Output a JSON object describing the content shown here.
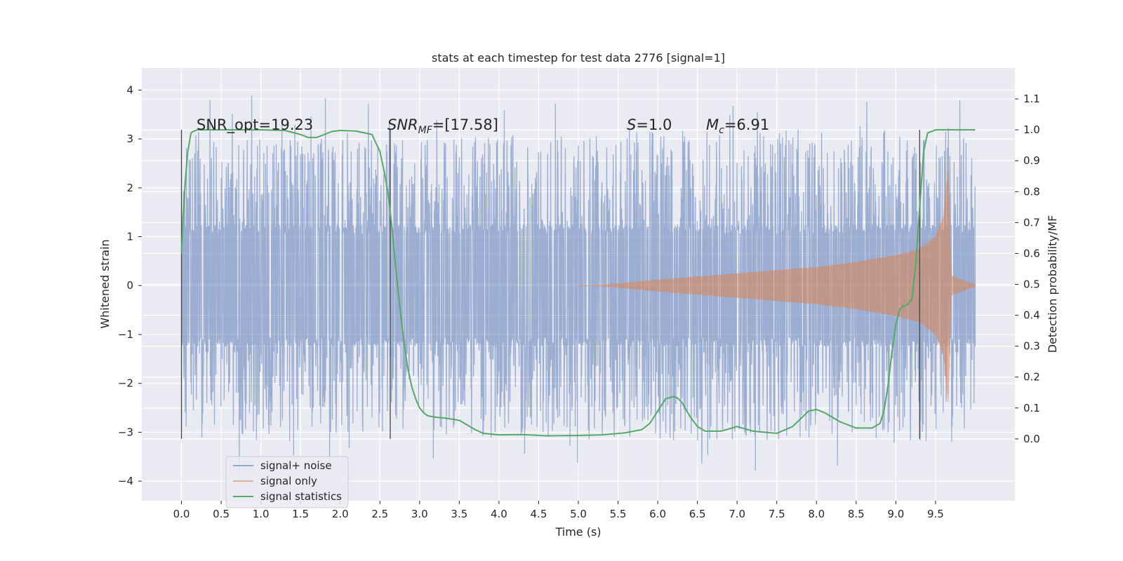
{
  "chart_data": {
    "type": "line",
    "title": "stats at each timestep for test data 2776 [signal=1]",
    "xlabel": "Time (s)",
    "ylabel_left": "Whitened strain",
    "ylabel_right": "Detection probability/MF",
    "xlim": [
      -0.5,
      10.5
    ],
    "ylim_left": [
      -4.4,
      4.45
    ],
    "ylim_right": [
      -0.2,
      1.2
    ],
    "x_ticks": [
      0.0,
      0.5,
      1.0,
      1.5,
      2.0,
      2.5,
      3.0,
      3.5,
      4.0,
      4.5,
      5.0,
      5.5,
      6.0,
      6.5,
      7.0,
      7.5,
      8.0,
      8.5,
      9.0,
      9.5
    ],
    "x_tick_labels": [
      "0.0",
      "0.5",
      "1.0",
      "1.5",
      "2.0",
      "2.5",
      "3.0",
      "3.5",
      "4.0",
      "4.5",
      "5.0",
      "5.5",
      "6.0",
      "6.5",
      "7.0",
      "7.5",
      "8.0",
      "8.5",
      "9.0",
      "9.5"
    ],
    "y_left_ticks": [
      -4,
      -3,
      -2,
      -1,
      0,
      1,
      2,
      3,
      4
    ],
    "y_left_tick_labels": [
      "−4",
      "−3",
      "−2",
      "−1",
      "0",
      "1",
      "2",
      "3",
      "4"
    ],
    "y_right_ticks": [
      0.0,
      0.1,
      0.2,
      0.3,
      0.4,
      0.5,
      0.6,
      0.7,
      0.8,
      0.9,
      1.0,
      1.1
    ],
    "y_right_tick_labels": [
      "0.0",
      "0.1",
      "0.2",
      "0.3",
      "0.4",
      "0.5",
      "0.6",
      "0.7",
      "0.8",
      "0.9",
      "1.0",
      "1.1"
    ],
    "grid": true,
    "legend_position": "bottom-left",
    "annotations": {
      "snr_opt": "SNR_opt=19.23",
      "snr_mf_main": "SNR",
      "snr_mf_sub": "MF",
      "snr_mf_value": "=[17.58]",
      "s_main": "S",
      "s_value": "=1.0",
      "mc_main": "M",
      "mc_sub": "c",
      "mc_value": "=6.91"
    },
    "vertical_markers_x": [
      0.0,
      2.63,
      9.3
    ],
    "series": [
      {
        "name": "signal+ noise",
        "color": "#4c72b0",
        "axis": "left",
        "x_range": [
          0.0,
          10.0
        ],
        "core_amplitude": 1.25,
        "spike_envelope": [
          [
            0.0,
            3.2
          ],
          [
            1.0,
            3.0
          ],
          [
            5.0,
            3.1
          ],
          [
            9.0,
            3.3
          ],
          [
            10.0,
            3.2
          ]
        ]
      },
      {
        "name": "signal only",
        "color": "#dd8452",
        "axis": "left",
        "envelope": [
          [
            5.2,
            0.0
          ],
          [
            6.0,
            0.12
          ],
          [
            7.0,
            0.25
          ],
          [
            8.0,
            0.38
          ],
          [
            8.5,
            0.48
          ],
          [
            9.0,
            0.62
          ],
          [
            9.3,
            0.75
          ],
          [
            9.5,
            1.0
          ],
          [
            9.6,
            1.4
          ],
          [
            9.66,
            2.4
          ],
          [
            9.7,
            0.2
          ],
          [
            10.0,
            0.02
          ]
        ]
      },
      {
        "name": "signal statistics",
        "color": "#55a868",
        "axis": "right",
        "x": [
          0.0,
          0.02,
          0.05,
          0.08,
          0.12,
          0.15,
          0.2,
          0.3,
          0.5,
          0.8,
          1.0,
          1.3,
          1.5,
          1.6,
          1.7,
          1.8,
          1.9,
          2.0,
          2.2,
          2.4,
          2.5,
          2.55,
          2.6,
          2.65,
          2.7,
          2.75,
          2.8,
          2.85,
          2.9,
          2.95,
          3.0,
          3.05,
          3.1,
          3.2,
          3.3,
          3.5,
          3.6,
          3.7,
          3.8,
          4.0,
          4.3,
          4.6,
          5.0,
          5.3,
          5.6,
          5.8,
          5.9,
          6.0,
          6.1,
          6.2,
          6.25,
          6.3,
          6.4,
          6.5,
          6.6,
          6.8,
          7.0,
          7.2,
          7.5,
          7.7,
          7.9,
          8.0,
          8.1,
          8.3,
          8.5,
          8.7,
          8.8,
          8.85,
          8.9,
          8.95,
          9.0,
          9.05,
          9.1,
          9.15,
          9.2,
          9.25,
          9.3,
          9.35,
          9.4,
          9.5,
          9.7,
          10.0
        ],
        "y": [
          0.6,
          0.72,
          0.84,
          0.93,
          0.99,
          0.995,
          1.0,
          1.0,
          1.0,
          1.0,
          1.0,
          0.998,
          0.985,
          0.975,
          0.975,
          0.985,
          0.995,
          0.998,
          0.996,
          0.985,
          0.93,
          0.87,
          0.8,
          0.69,
          0.55,
          0.43,
          0.32,
          0.23,
          0.17,
          0.13,
          0.1,
          0.085,
          0.075,
          0.07,
          0.068,
          0.06,
          0.045,
          0.03,
          0.018,
          0.013,
          0.014,
          0.01,
          0.011,
          0.013,
          0.02,
          0.03,
          0.05,
          0.09,
          0.13,
          0.137,
          0.132,
          0.12,
          0.075,
          0.04,
          0.025,
          0.025,
          0.04,
          0.025,
          0.018,
          0.04,
          0.09,
          0.095,
          0.085,
          0.055,
          0.035,
          0.035,
          0.05,
          0.09,
          0.17,
          0.28,
          0.37,
          0.42,
          0.43,
          0.435,
          0.45,
          0.56,
          0.75,
          0.93,
          0.99,
          1.0,
          1.0,
          1.0
        ]
      }
    ]
  }
}
